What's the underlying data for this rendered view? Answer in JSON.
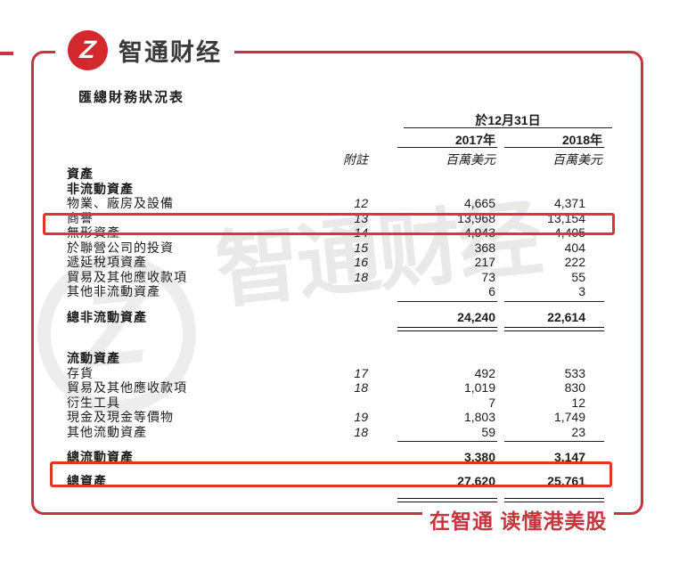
{
  "brand": {
    "logo_glyph": "Z",
    "name": "智通财经"
  },
  "page": {
    "title": "匯總財務狀況表",
    "tagline": "在智通 读懂港美股"
  },
  "colors": {
    "frame_red": "#c5353e",
    "logo_red": "#d4282f",
    "highlight_red": "#e2342a",
    "text_dark": "#1c1c1c",
    "watermark_gray": "rgba(0,0,0,0.085)"
  },
  "watermark": {
    "glyph": "Z",
    "text": "智通财经"
  },
  "table": {
    "header": {
      "date_label": "於12月31日",
      "year_2017": "2017年",
      "year_2018": "2018年",
      "note_label": "附註",
      "unit_2017": "百萬美元",
      "unit_2018": "百萬美元"
    },
    "rows": [
      {
        "label": "資產",
        "note": "",
        "v2017": "",
        "v2018": ""
      },
      {
        "label": "非流動資產",
        "note": "",
        "v2017": "",
        "v2018": ""
      },
      {
        "label": "物業、廠房及設備",
        "note": "12",
        "v2017": "4,665",
        "v2018": "4,371"
      },
      {
        "label": "商譽",
        "note": "13",
        "v2017": "13,968",
        "v2018": "13,154"
      },
      {
        "label": "無形資產",
        "note": "14",
        "v2017": "4,943",
        "v2018": "4,405"
      },
      {
        "label": "於聯營公司的投資",
        "note": "15",
        "v2017": "368",
        "v2018": "404"
      },
      {
        "label": "遞延稅項資產",
        "note": "16",
        "v2017": "217",
        "v2018": "222"
      },
      {
        "label": "貿易及其他應收款項",
        "note": "18",
        "v2017": "73",
        "v2018": "55"
      },
      {
        "label": "其他非流動資產",
        "note": "",
        "v2017": "6",
        "v2018": "3"
      },
      {
        "label": "總非流動資產",
        "note": "",
        "v2017": "24,240",
        "v2018": "22,614"
      },
      {
        "label": "流動資產",
        "note": "",
        "v2017": "",
        "v2018": ""
      },
      {
        "label": "存貨",
        "note": "17",
        "v2017": "492",
        "v2018": "533"
      },
      {
        "label": "貿易及其他應收款項",
        "note": "18",
        "v2017": "1,019",
        "v2018": "830"
      },
      {
        "label": "衍生工具",
        "note": "",
        "v2017": "7",
        "v2018": "12"
      },
      {
        "label": "現金及現金等價物",
        "note": "19",
        "v2017": "1,803",
        "v2018": "1,749"
      },
      {
        "label": "其他流動資產",
        "note": "18",
        "v2017": "59",
        "v2018": "23"
      },
      {
        "label": "總流動資產",
        "note": "",
        "v2017": "3,380",
        "v2018": "3,147"
      },
      {
        "label": "總資產",
        "note": "",
        "v2017": "27,620",
        "v2018": "25,761"
      }
    ]
  }
}
